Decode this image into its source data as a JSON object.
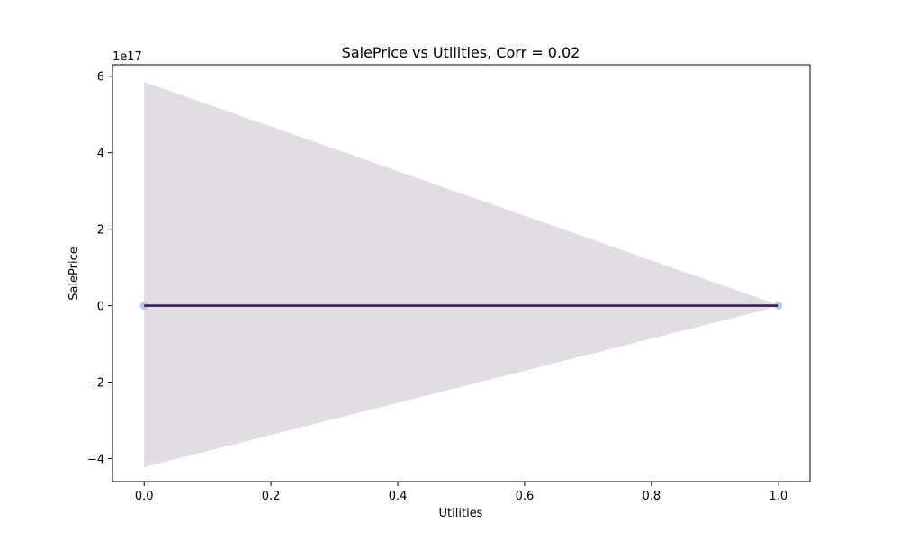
{
  "chart_data": {
    "type": "scatter",
    "title": "SalePrice vs Utilities, Corr = 0.02",
    "xlabel": "Utilities",
    "ylabel": "SalePrice",
    "y_offset_label": "1e17",
    "xlim": [
      -0.05,
      1.05
    ],
    "ylim": [
      -4.6,
      6.3
    ],
    "x_ticks": [
      0.0,
      0.2,
      0.4,
      0.6,
      0.8,
      1.0
    ],
    "x_tick_labels": [
      "0.0",
      "0.2",
      "0.4",
      "0.6",
      "0.8",
      "1.0"
    ],
    "y_ticks": [
      -4,
      -2,
      0,
      2,
      4,
      6
    ],
    "y_tick_labels": [
      "−4",
      "−2",
      "0",
      "2",
      "4",
      "6"
    ],
    "points": [
      {
        "x": 0.0,
        "y": 0.0
      },
      {
        "x": 1.0,
        "y": 0.0
      }
    ],
    "regression_line": {
      "x": [
        0.0,
        1.0
      ],
      "y": [
        0.0,
        0.0
      ]
    },
    "confidence_band": {
      "x": [
        0.0,
        1.0
      ],
      "upper": [
        5.85,
        0.02
      ],
      "lower": [
        -4.22,
        -0.02
      ]
    },
    "grid": false,
    "colors": {
      "points": "#a7c7ea",
      "line": "#3b1a52",
      "band": "#e2dce5",
      "axes": "#000000"
    }
  }
}
